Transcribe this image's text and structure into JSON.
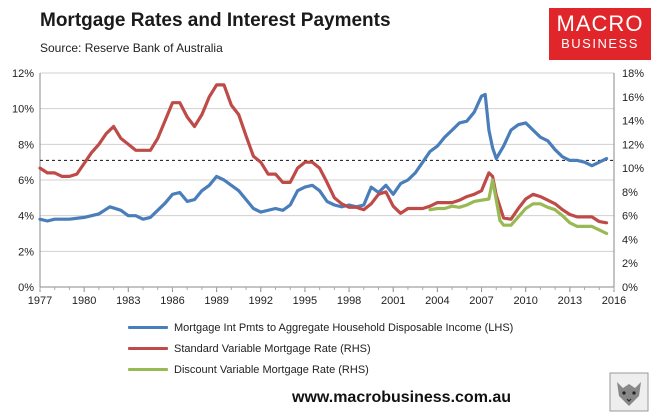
{
  "title": "Mortgage Rates and Interest Payments",
  "subtitle": "Source: Reserve Bank of Australia",
  "logo": {
    "line1": "MACRO",
    "line2": "BUSINESS"
  },
  "footer": {
    "url": "www.macrobusiness.com.au"
  },
  "colors": {
    "blue": "#4a7ebb",
    "red": "#be4b48",
    "green": "#98b954",
    "logo_bg": "#e0262b"
  },
  "chart_data": {
    "type": "line",
    "title": "Mortgage Rates and Interest Payments",
    "x_ticks": [
      "1977",
      "1980",
      "1983",
      "1986",
      "1989",
      "1992",
      "1995",
      "1998",
      "2001",
      "2004",
      "2007",
      "2010",
      "2013",
      "2016"
    ],
    "xlim": [
      1977,
      2016
    ],
    "y_left": {
      "ticks": [
        "0%",
        "2%",
        "4%",
        "6%",
        "8%",
        "10%",
        "12%"
      ],
      "lim": [
        0,
        12
      ]
    },
    "y_right": {
      "ticks": [
        "0%",
        "2%",
        "4%",
        "6%",
        "8%",
        "10%",
        "12%",
        "14%",
        "16%",
        "18%"
      ],
      "lim": [
        0,
        18
      ]
    },
    "reference_line": {
      "axis": "left",
      "value": 7.1,
      "style": "dashed"
    },
    "grid": "horizontal",
    "legend_position": "bottom",
    "series": [
      {
        "name": "Mortgage Int Pmts to Aggregate Household Disposable Income (LHS)",
        "axis": "left",
        "color": "#4a7ebb",
        "x": [
          1977,
          1977.5,
          1978,
          1979,
          1980,
          1981,
          1981.75,
          1982.5,
          1983,
          1983.5,
          1984,
          1984.5,
          1985,
          1985.5,
          1986,
          1986.5,
          1987,
          1987.5,
          1988,
          1988.5,
          1989,
          1989.5,
          1990,
          1990.5,
          1991,
          1991.5,
          1992,
          1993,
          1993.5,
          1994,
          1994.5,
          1995,
          1995.5,
          1996,
          1996.5,
          1997,
          1997.5,
          1998,
          1998.5,
          1999,
          1999.5,
          2000,
          2000.5,
          2001,
          2001.5,
          2002,
          2002.5,
          2003,
          2003.5,
          2004,
          2004.5,
          2005,
          2005.5,
          2006,
          2006.5,
          2007,
          2007.25,
          2007.5,
          2007.75,
          2008,
          2008.5,
          2009,
          2009.5,
          2010,
          2010.5,
          2011,
          2011.5,
          2012,
          2012.5,
          2013,
          2013.5,
          2014,
          2014.5,
          2015,
          2015.5
        ],
        "values": [
          3.8,
          3.7,
          3.8,
          3.8,
          3.9,
          4.1,
          4.5,
          4.3,
          4.0,
          4.0,
          3.8,
          3.9,
          4.3,
          4.7,
          5.2,
          5.3,
          4.8,
          4.9,
          5.4,
          5.7,
          6.2,
          6.0,
          5.7,
          5.4,
          4.9,
          4.4,
          4.2,
          4.4,
          4.3,
          4.6,
          5.4,
          5.6,
          5.7,
          5.4,
          4.8,
          4.6,
          4.5,
          4.6,
          4.5,
          4.6,
          5.6,
          5.3,
          5.7,
          5.2,
          5.8,
          6.0,
          6.4,
          7.0,
          7.6,
          7.9,
          8.4,
          8.8,
          9.2,
          9.3,
          9.8,
          10.7,
          10.8,
          8.8,
          7.8,
          7.2,
          7.9,
          8.8,
          9.1,
          9.2,
          8.8,
          8.4,
          8.2,
          7.7,
          7.3,
          7.1,
          7.1,
          7.0,
          6.8,
          7.0,
          7.2
        ]
      },
      {
        "name": "Standard Variable Mortgage Rate (RHS)",
        "axis": "right",
        "color": "#be4b48",
        "x": [
          1977,
          1977.5,
          1978,
          1978.5,
          1979,
          1979.5,
          1980,
          1980.5,
          1981,
          1981.5,
          1982,
          1982.5,
          1983,
          1983.5,
          1984,
          1984.5,
          1985,
          1985.5,
          1986,
          1986.5,
          1987,
          1987.5,
          1988,
          1988.5,
          1989,
          1989.5,
          1990,
          1990.5,
          1991,
          1991.5,
          1992,
          1992.5,
          1993,
          1993.5,
          1994,
          1994.5,
          1995,
          1995.5,
          1996,
          1996.5,
          1997,
          1997.5,
          1998,
          1998.5,
          1999,
          1999.5,
          2000,
          2000.5,
          2001,
          2001.5,
          2002,
          2002.5,
          2003,
          2003.5,
          2004,
          2004.5,
          2005,
          2005.5,
          2006,
          2006.5,
          2007,
          2007.5,
          2007.75,
          2008,
          2008.5,
          2009,
          2009.5,
          2010,
          2010.5,
          2011,
          2011.5,
          2012,
          2012.5,
          2013,
          2013.5,
          2014,
          2014.5,
          2015,
          2015.5
        ],
        "values": [
          10.0,
          9.6,
          9.6,
          9.3,
          9.3,
          9.5,
          10.4,
          11.3,
          12.0,
          12.9,
          13.5,
          12.5,
          12.0,
          11.5,
          11.5,
          11.5,
          12.5,
          14.0,
          15.5,
          15.5,
          14.3,
          13.5,
          14.5,
          16.0,
          17.0,
          17.0,
          15.3,
          14.5,
          12.7,
          11.0,
          10.5,
          9.5,
          9.5,
          8.8,
          8.8,
          10.0,
          10.5,
          10.5,
          10.0,
          8.8,
          7.5,
          7.0,
          6.7,
          6.7,
          6.5,
          7.0,
          7.8,
          8.0,
          6.8,
          6.2,
          6.6,
          6.6,
          6.6,
          6.8,
          7.1,
          7.1,
          7.1,
          7.3,
          7.6,
          7.8,
          8.1,
          9.6,
          9.3,
          7.7,
          5.8,
          5.7,
          6.6,
          7.4,
          7.8,
          7.6,
          7.3,
          7.0,
          6.5,
          6.1,
          5.9,
          5.9,
          5.9,
          5.5,
          5.4
        ]
      },
      {
        "name": "Discount Variable Mortgage Rate (RHS)",
        "axis": "right",
        "color": "#98b954",
        "x": [
          2003.5,
          2004,
          2004.5,
          2005,
          2005.5,
          2006,
          2006.5,
          2007,
          2007.5,
          2007.75,
          2008,
          2008.25,
          2008.5,
          2009,
          2009.5,
          2010,
          2010.5,
          2011,
          2011.5,
          2012,
          2012.5,
          2013,
          2013.5,
          2014,
          2014.5,
          2015,
          2015.5
        ],
        "values": [
          6.5,
          6.6,
          6.6,
          6.8,
          6.7,
          6.9,
          7.2,
          7.3,
          7.4,
          9.0,
          7.3,
          5.6,
          5.2,
          5.2,
          5.9,
          6.6,
          7.0,
          7.0,
          6.7,
          6.5,
          6.0,
          5.4,
          5.1,
          5.1,
          5.1,
          4.8,
          4.5
        ]
      }
    ]
  }
}
